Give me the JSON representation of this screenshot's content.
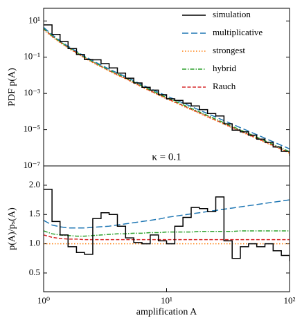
{
  "chart_data": [
    {
      "type": "line",
      "ylabel": "PDF p(A)",
      "annotation": "κ = 0.1",
      "xscale": "log",
      "yscale": "log",
      "legend": "upper right",
      "xlim": [
        1,
        100
      ],
      "ylim": [
        1e-07,
        50
      ],
      "yticks": [
        {
          "value": 10,
          "label": "10¹"
        },
        {
          "value": 0.1,
          "label": "10⁻¹"
        },
        {
          "value": 0.001,
          "label": "10⁻³"
        },
        {
          "value": 1e-05,
          "label": "10⁻⁵"
        },
        {
          "value": 1e-07,
          "label": "10⁻⁷"
        }
      ],
      "x": [
        1,
        1.17,
        1.36,
        1.58,
        1.85,
        2.15,
        2.51,
        2.93,
        3.41,
        3.98,
        4.64,
        5.41,
        6.31,
        7.36,
        8.58,
        10,
        11.66,
        13.59,
        15.85,
        18.48,
        21.54,
        25.12,
        29.29,
        34.15,
        39.81,
        46.42,
        54.12,
        63.1,
        73.56,
        85.77,
        100
      ],
      "series": [
        {
          "name": "simulation",
          "color": "#000000",
          "dash": "",
          "drawstyle": "steps-post",
          "values": [
            6.1,
            1.82,
            0.726,
            0.3,
            0.141,
            0.0731,
            0.0716,
            0.0441,
            0.0255,
            0.0133,
            0.00693,
            0.00379,
            0.00219,
            0.00152,
            0.000854,
            0.000501,
            0.000411,
            0.00029,
            0.000204,
            0.000127,
            7.77e-05,
            5.69e-05,
            2.1e-05,
            9.45e-06,
            7.54e-06,
            5.01e-06,
            3e-06,
            2e-06,
            1.11e-06,
            6.35e-07,
            3.51e-07
          ]
        },
        {
          "name": "multiplicative",
          "color": "#1f77b4",
          "dash": "9 4",
          "values": [
            4.42,
            1.74,
            0.814,
            0.401,
            0.211,
            0.113,
            0.0641,
            0.0372,
            0.0221,
            0.0135,
            0.00844,
            0.00506,
            0.00302,
            0.00185,
            0.00115,
            0.000726,
            0.000465,
            0.000298,
            0.00019,
            0.000121,
            7.77e-05,
            4.96e-05,
            3.18e-05,
            2.03e-05,
            1.29e-05,
            8.27e-06,
            5.28e-06,
            3.38e-06,
            2.15e-06,
            1.37e-06,
            8.77e-07
          ]
        },
        {
          "name": "strongest",
          "color": "#ff7f0e",
          "dash": "1.5 2.5",
          "values": [
            3.16,
            1.32,
            0.631,
            0.316,
            0.166,
            0.0891,
            0.0501,
            0.0288,
            0.017,
            0.0102,
            0.0063,
            0.00372,
            0.00219,
            0.00132,
            0.000813,
            0.000501,
            0.000316,
            0.0002,
            0.000126,
            7.94e-05,
            5.01e-05,
            3.16e-05,
            2e-05,
            1.26e-05,
            7.94e-06,
            5.01e-06,
            3.16e-06,
            2e-06,
            1.26e-06,
            7.94e-07,
            5.01e-07
          ]
        },
        {
          "name": "hybrid",
          "color": "#2ca02c",
          "dash": "6 2 1.5 2",
          "values": [
            3.86,
            1.54,
            0.726,
            0.36,
            0.188,
            0.101,
            0.0571,
            0.0331,
            0.0197,
            0.0119,
            0.00737,
            0.00439,
            0.00258,
            0.00157,
            0.000967,
            0.000601,
            0.000379,
            0.00024,
            0.000151,
            9.61e-05,
            6.06e-05,
            3.82e-05,
            2.42e-05,
            1.52e-05,
            9.69e-06,
            6.11e-06,
            3.86e-06,
            2.44e-06,
            1.54e-06,
            9.69e-07,
            6.11e-07
          ]
        },
        {
          "name": "Rauch",
          "color": "#d62728",
          "dash": "5 2.5",
          "values": [
            3.63,
            1.47,
            0.688,
            0.341,
            0.179,
            0.0953,
            0.0536,
            0.0308,
            0.0182,
            0.0109,
            0.00674,
            0.00398,
            0.00234,
            0.00141,
            0.00087,
            0.000536,
            0.000338,
            0.000214,
            0.000135,
            8.5e-05,
            5.36e-05,
            3.38e-05,
            2.14e-05,
            1.35e-05,
            8.5e-06,
            5.36e-06,
            3.38e-06,
            2.14e-06,
            1.35e-06,
            8.5e-07,
            5.36e-07
          ]
        }
      ]
    },
    {
      "type": "line",
      "xlabel": "amplification A",
      "ylabel": "p(A)/pₛ(A)",
      "xscale": "log",
      "xlim": [
        1,
        100
      ],
      "ylim": [
        0.18,
        2.33
      ],
      "xticks": [
        {
          "value": 1,
          "label": "10⁰"
        },
        {
          "value": 10,
          "label": "10¹"
        },
        {
          "value": 100,
          "label": "10²"
        }
      ],
      "yticks": [
        {
          "value": 0.5,
          "label": "0.5"
        },
        {
          "value": 1,
          "label": "1.0"
        },
        {
          "value": 1.5,
          "label": "1.5"
        },
        {
          "value": 2,
          "label": "2.0"
        }
      ],
      "x": [
        1,
        1.17,
        1.36,
        1.58,
        1.85,
        2.15,
        2.51,
        2.93,
        3.41,
        3.98,
        4.64,
        5.41,
        6.31,
        7.36,
        8.58,
        10,
        11.66,
        13.59,
        15.85,
        18.48,
        21.54,
        25.12,
        29.29,
        34.15,
        39.81,
        46.42,
        54.12,
        63.1,
        73.56,
        85.77,
        100
      ],
      "series": [
        {
          "color": "#000000",
          "dash": "",
          "drawstyle": "steps-post",
          "values": [
            1.93,
            1.38,
            1.15,
            0.95,
            0.85,
            0.82,
            1.43,
            1.53,
            1.5,
            1.3,
            1.1,
            1.02,
            1.0,
            1.15,
            1.05,
            1.0,
            1.3,
            1.45,
            1.62,
            1.6,
            1.55,
            1.8,
            1.05,
            0.75,
            0.95,
            1.0,
            0.95,
            1.0,
            0.88,
            0.8,
            0.7
          ]
        },
        {
          "color": "#1f77b4",
          "dash": "9 4",
          "values": [
            1.4,
            1.32,
            1.29,
            1.27,
            1.27,
            1.27,
            1.28,
            1.29,
            1.3,
            1.32,
            1.34,
            1.36,
            1.38,
            1.4,
            1.42,
            1.45,
            1.47,
            1.49,
            1.51,
            1.53,
            1.55,
            1.57,
            1.59,
            1.61,
            1.63,
            1.65,
            1.67,
            1.69,
            1.71,
            1.73,
            1.75
          ]
        },
        {
          "color": "#ff7f0e",
          "dash": "1.5 2.5",
          "values": [
            1,
            1,
            1,
            1,
            1,
            1,
            1,
            1,
            1,
            1,
            1,
            1,
            1,
            1,
            1,
            1,
            1,
            1,
            1,
            1,
            1,
            1,
            1,
            1,
            1,
            1,
            1,
            1,
            1,
            1,
            1
          ]
        },
        {
          "color": "#2ca02c",
          "dash": "6 2 1.5 2",
          "values": [
            1.22,
            1.17,
            1.15,
            1.14,
            1.13,
            1.13,
            1.14,
            1.15,
            1.16,
            1.17,
            1.17,
            1.18,
            1.18,
            1.19,
            1.19,
            1.2,
            1.2,
            1.2,
            1.2,
            1.21,
            1.21,
            1.21,
            1.21,
            1.21,
            1.22,
            1.22,
            1.22,
            1.22,
            1.22,
            1.22,
            1.22
          ]
        },
        {
          "color": "#d62728",
          "dash": "5 2.5",
          "values": [
            1.15,
            1.11,
            1.09,
            1.08,
            1.08,
            1.07,
            1.07,
            1.07,
            1.07,
            1.07,
            1.07,
            1.07,
            1.07,
            1.07,
            1.07,
            1.07,
            1.07,
            1.07,
            1.07,
            1.07,
            1.07,
            1.07,
            1.07,
            1.07,
            1.07,
            1.07,
            1.07,
            1.07,
            1.07,
            1.07,
            1.07
          ]
        }
      ]
    }
  ]
}
